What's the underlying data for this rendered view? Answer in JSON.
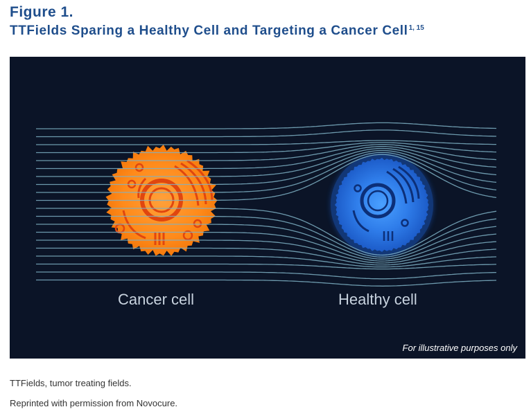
{
  "figure": {
    "label": "Figure 1.",
    "title": "TTFields Sparing a Healthy Cell and Targeting a Cancer Cell",
    "title_superscript": "1, 15"
  },
  "illustration": {
    "cancer_cell_label": "Cancer cell",
    "healthy_cell_label": "Healthy cell",
    "disclaimer": "For illustrative purposes only",
    "colors": {
      "background": "#0b1427",
      "field_lines": "#7fb2c6",
      "cancer_cell": "#ff8a1a",
      "healthy_cell": "#2f7dea"
    }
  },
  "footnotes": {
    "abbreviation": "TTFields, tumor treating fields.",
    "permission": "Reprinted with permission from Novocure."
  }
}
